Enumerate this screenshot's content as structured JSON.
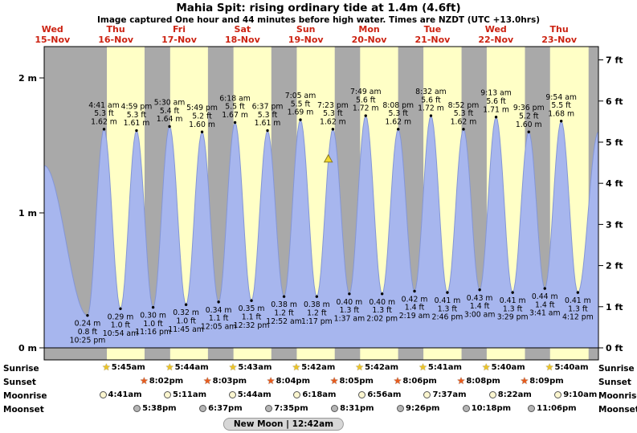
{
  "header": {
    "title": "Mahia Spit: rising ordinary tide at 1.4m (4.6ft)",
    "subtitle": "Image captured One hour and 44 minutes before high water. Times are NZDT (UTC +13.0hrs)"
  },
  "days": [
    {
      "dow": "Wed",
      "date": "15-Nov"
    },
    {
      "dow": "Thu",
      "date": "16-Nov"
    },
    {
      "dow": "Fri",
      "date": "17-Nov"
    },
    {
      "dow": "Sat",
      "date": "18-Nov"
    },
    {
      "dow": "Sun",
      "date": "19-Nov"
    },
    {
      "dow": "Mon",
      "date": "20-Nov"
    },
    {
      "dow": "Tue",
      "date": "21-Nov"
    },
    {
      "dow": "Wed",
      "date": "22-Nov"
    },
    {
      "dow": "Thu",
      "date": "23-Nov"
    }
  ],
  "axes": {
    "left_ticks": [
      "0 m",
      "1 m",
      "2 m"
    ],
    "right_ticks": [
      "0 ft",
      "1 ft",
      "2 ft",
      "3 ft",
      "4 ft",
      "5 ft",
      "6 ft",
      "7 ft"
    ]
  },
  "chart_data": {
    "type": "area",
    "title": "Mahia Spit: rising ordinary tide at 1.4m (4.6ft)",
    "ylim_m": [
      0,
      2.32
    ],
    "ylim_ft": [
      0,
      7
    ],
    "edge_start_m": 1.35,
    "edge_end_m": 1.6,
    "tides": [
      {
        "kind": "low",
        "day": 0,
        "time": "10:25 pm",
        "m": 0.24,
        "ft": 0.8
      },
      {
        "kind": "high",
        "day": 1,
        "time": "4:41 am",
        "m": 1.62,
        "ft": 5.3
      },
      {
        "kind": "low",
        "day": 1,
        "time": "10:54 am",
        "m": 0.29,
        "ft": 1.0
      },
      {
        "kind": "high",
        "day": 1,
        "time": "4:59 pm",
        "m": 1.61,
        "ft": 5.3
      },
      {
        "kind": "low",
        "day": 1,
        "time": "11:16 pm",
        "m": 0.3,
        "ft": 1.0
      },
      {
        "kind": "high",
        "day": 2,
        "time": "5:30 am",
        "m": 1.64,
        "ft": 5.4
      },
      {
        "kind": "low",
        "day": 2,
        "time": "11:45 am",
        "m": 0.32,
        "ft": 1.0
      },
      {
        "kind": "high",
        "day": 2,
        "time": "5:49 pm",
        "m": 1.6,
        "ft": 5.2
      },
      {
        "kind": "low",
        "day": 3,
        "time": "12:05 am",
        "m": 0.34,
        "ft": 1.1
      },
      {
        "kind": "high",
        "day": 3,
        "time": "6:18 am",
        "m": 1.67,
        "ft": 5.5
      },
      {
        "kind": "low",
        "day": 3,
        "time": "12:32 pm",
        "m": 0.35,
        "ft": 1.1
      },
      {
        "kind": "high",
        "day": 3,
        "time": "6:37 pm",
        "m": 1.61,
        "ft": 5.3
      },
      {
        "kind": "low",
        "day": 4,
        "time": "12:52 am",
        "m": 0.38,
        "ft": 1.2
      },
      {
        "kind": "high",
        "day": 4,
        "time": "7:05 am",
        "m": 1.69,
        "ft": 5.5
      },
      {
        "kind": "low",
        "day": 4,
        "time": "1:17 pm",
        "m": 0.38,
        "ft": 1.2
      },
      {
        "kind": "high",
        "day": 4,
        "time": "7:23 pm",
        "m": 1.62,
        "ft": 5.3
      },
      {
        "kind": "low",
        "day": 5,
        "time": "1:37 am",
        "m": 0.4,
        "ft": 1.3
      },
      {
        "kind": "high",
        "day": 5,
        "time": "7:49 am",
        "m": 1.72,
        "ft": 5.6
      },
      {
        "kind": "low",
        "day": 5,
        "time": "2:02 pm",
        "m": 0.4,
        "ft": 1.3
      },
      {
        "kind": "high",
        "day": 5,
        "time": "8:08 pm",
        "m": 1.62,
        "ft": 5.3
      },
      {
        "kind": "low",
        "day": 6,
        "time": "2:19 am",
        "m": 0.42,
        "ft": 1.4
      },
      {
        "kind": "high",
        "day": 6,
        "time": "8:32 am",
        "m": 1.72,
        "ft": 5.6
      },
      {
        "kind": "low",
        "day": 6,
        "time": "2:46 pm",
        "m": 0.41,
        "ft": 1.3
      },
      {
        "kind": "high",
        "day": 6,
        "time": "8:52 pm",
        "m": 1.62,
        "ft": 5.3
      },
      {
        "kind": "low",
        "day": 7,
        "time": "3:00 am",
        "m": 0.43,
        "ft": 1.4
      },
      {
        "kind": "high",
        "day": 7,
        "time": "9:13 am",
        "m": 1.71,
        "ft": 5.6
      },
      {
        "kind": "low",
        "day": 7,
        "time": "3:29 pm",
        "m": 0.41,
        "ft": 1.3
      },
      {
        "kind": "high",
        "day": 7,
        "time": "9:36 pm",
        "m": 1.6,
        "ft": 5.2
      },
      {
        "kind": "low",
        "day": 8,
        "time": "3:41 am",
        "m": 0.44,
        "ft": 1.4
      },
      {
        "kind": "high",
        "day": 8,
        "time": "9:54 am",
        "m": 1.68,
        "ft": 5.5
      },
      {
        "kind": "low",
        "day": 8,
        "time": "4:12 pm",
        "m": 0.41,
        "ft": 1.3
      }
    ],
    "marker": {
      "day": 4,
      "time": "5:39 pm",
      "m": 1.4
    },
    "colors": {
      "night": "#a9a9a9",
      "day": "#ffffc6",
      "water": "#a7b6ee",
      "water_edge": "#8496d6",
      "marker": "#f2d931",
      "day_label": "#cc2211"
    }
  },
  "astro": {
    "rows": [
      {
        "key": "sunrise",
        "label": "Sunrise",
        "icon": "star",
        "icon_color": "#ecc426",
        "items": [
          {
            "day": 1,
            "time": "5:45am"
          },
          {
            "day": 2,
            "time": "5:44am"
          },
          {
            "day": 3,
            "time": "5:43am"
          },
          {
            "day": 4,
            "time": "5:42am"
          },
          {
            "day": 5,
            "time": "5:42am"
          },
          {
            "day": 6,
            "time": "5:41am"
          },
          {
            "day": 7,
            "time": "5:40am"
          },
          {
            "day": 8,
            "time": "5:40am"
          }
        ]
      },
      {
        "key": "sunset",
        "label": "Sunset",
        "icon": "star",
        "icon_color": "#e65c1e",
        "items": [
          {
            "day": 1,
            "time": "8:02pm"
          },
          {
            "day": 2,
            "time": "8:03pm"
          },
          {
            "day": 3,
            "time": "8:04pm"
          },
          {
            "day": 4,
            "time": "8:05pm"
          },
          {
            "day": 5,
            "time": "8:06pm"
          },
          {
            "day": 6,
            "time": "8:08pm"
          },
          {
            "day": 7,
            "time": "8:09pm"
          }
        ]
      },
      {
        "key": "moonrise",
        "label": "Moonrise",
        "icon": "circle",
        "icon_color": "#fbf6cf",
        "items": [
          {
            "day": 1,
            "time": "4:41am"
          },
          {
            "day": 2,
            "time": "5:11am"
          },
          {
            "day": 3,
            "time": "5:44am"
          },
          {
            "day": 4,
            "time": "6:18am"
          },
          {
            "day": 5,
            "time": "6:56am"
          },
          {
            "day": 6,
            "time": "7:37am"
          },
          {
            "day": 7,
            "time": "8:22am"
          },
          {
            "day": 8,
            "time": "9:10am"
          }
        ]
      },
      {
        "key": "moonset",
        "label": "Moonset",
        "icon": "circle",
        "icon_color": "#b5b5b5",
        "items": [
          {
            "day": 1,
            "time": "5:38pm"
          },
          {
            "day": 2,
            "time": "6:37pm"
          },
          {
            "day": 3,
            "time": "7:35pm"
          },
          {
            "day": 4,
            "time": "8:31pm"
          },
          {
            "day": 5,
            "time": "9:26pm"
          },
          {
            "day": 6,
            "time": "10:18pm"
          },
          {
            "day": 7,
            "time": "11:06pm"
          }
        ]
      }
    ],
    "note": "New Moon | 12:42am"
  }
}
